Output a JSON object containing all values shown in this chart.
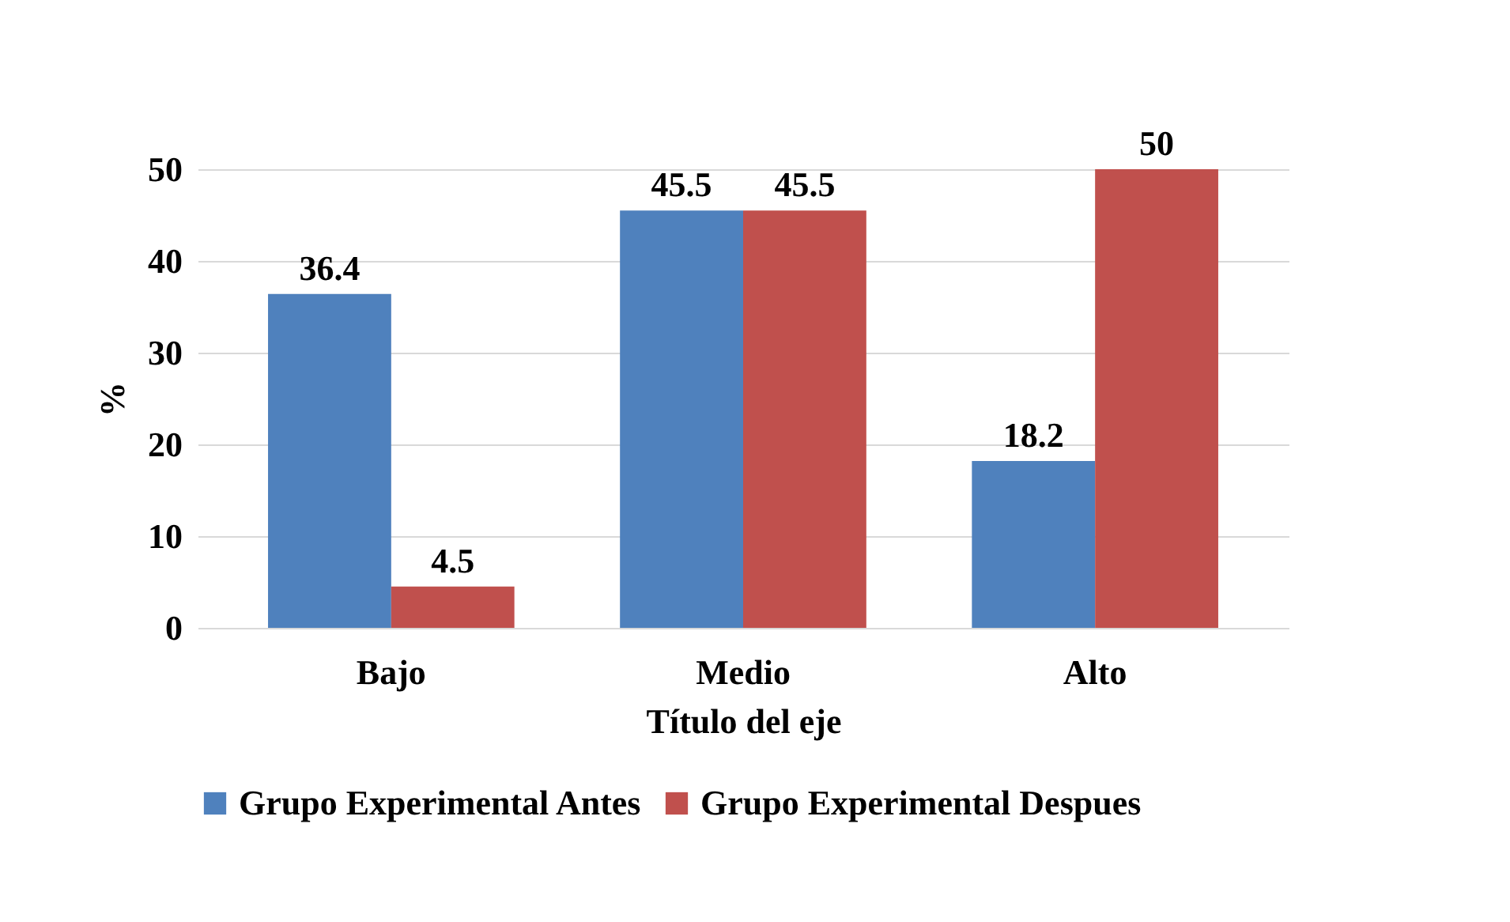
{
  "chart_data": {
    "type": "bar",
    "xlabel": "Título del eje",
    "ylabel": "%",
    "categories": [
      "Bajo",
      "Medio",
      "Alto"
    ],
    "series": [
      {
        "name": "Grupo Experimental Antes",
        "color": "#4f81bd",
        "values": [
          36.4,
          45.5,
          18.2
        ]
      },
      {
        "name": "Grupo Experimental Despues",
        "color": "#c0504d",
        "values": [
          4.5,
          45.5,
          50
        ]
      }
    ],
    "ylim": [
      0,
      50
    ],
    "yticks": [
      0,
      10,
      20,
      30,
      40,
      50
    ],
    "grid": "y",
    "legend": "bottom",
    "data_labels": true
  }
}
